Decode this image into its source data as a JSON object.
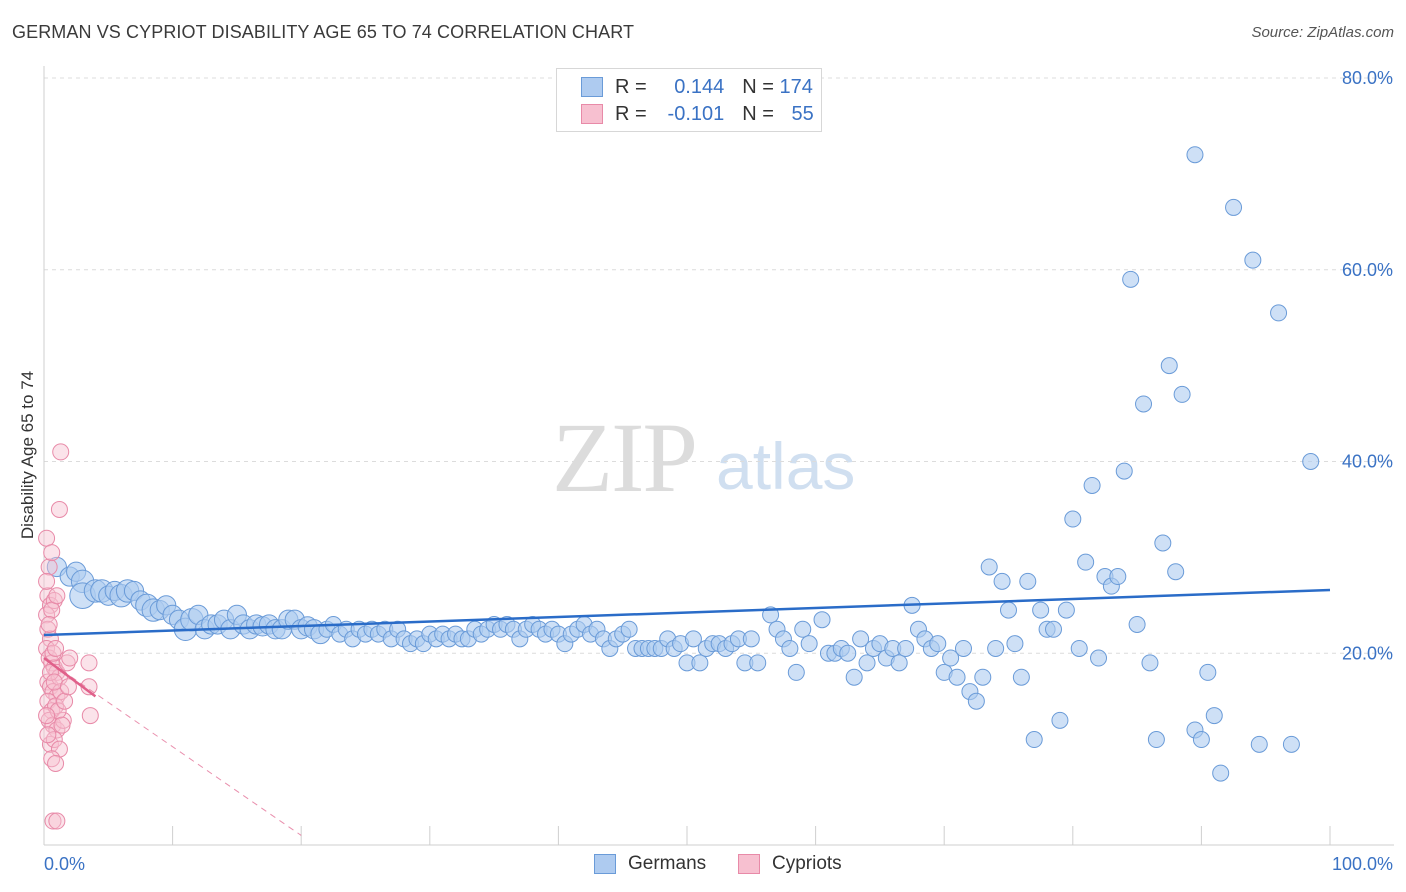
{
  "header": {
    "title": "GERMAN VS CYPRIOT DISABILITY AGE 65 TO 74 CORRELATION CHART",
    "source": "Source: ZipAtlas.com"
  },
  "legend": {
    "rows": [
      {
        "r_label": "R = ",
        "r_value": "0.144",
        "n_label": "N = ",
        "n_value": "174"
      },
      {
        "r_label": "R = ",
        "r_value": "-0.101",
        "n_label": "N = ",
        "n_value": "55"
      }
    ]
  },
  "bottom_legend": {
    "germans": "Germans",
    "cypriots": "Cypriots"
  },
  "watermark": {
    "zip": "ZIP",
    "atlas": "atlas"
  },
  "colors": {
    "germans_fill": "#aecbf0",
    "germans_stroke": "#6a9bd8",
    "germans_line": "#2a6cc8",
    "cypriots_fill": "#f7c0d0",
    "cypriots_stroke": "#e88aa8",
    "cypriots_line": "#e0608a",
    "axis_label": "#3a72c4"
  },
  "chart_data": {
    "type": "scatter",
    "title": "GERMAN VS CYPRIOT DISABILITY AGE 65 TO 74 CORRELATION CHART",
    "xlabel": "",
    "ylabel": "Disability Age 65 to 74",
    "xlim": [
      0,
      100
    ],
    "ylim": [
      0,
      80
    ],
    "x_tick_labels": [
      "0.0%",
      "100.0%"
    ],
    "y_ticks": [
      20,
      40,
      60,
      80
    ],
    "y_tick_labels": [
      "20.0%",
      "40.0%",
      "60.0%",
      "80.0%"
    ],
    "grid": "horizontal dashed",
    "legend_placement": "top-center",
    "series": [
      {
        "name": "Germans",
        "R": 0.144,
        "N": 174,
        "trend": {
          "x": [
            0,
            100
          ],
          "y": [
            21.9,
            26.6
          ]
        },
        "points": [
          [
            1,
            29,
            12
          ],
          [
            2,
            28,
            12
          ],
          [
            2.5,
            28.5,
            12
          ],
          [
            3,
            27.5,
            14
          ],
          [
            3,
            26,
            16
          ],
          [
            4,
            26.5,
            14
          ],
          [
            4.5,
            26.5,
            14
          ],
          [
            5,
            26,
            12
          ],
          [
            5.5,
            26.5,
            12
          ],
          [
            6,
            26,
            14
          ],
          [
            6.5,
            26.5,
            14
          ],
          [
            7,
            26.5,
            12
          ],
          [
            7.5,
            25.5,
            12
          ],
          [
            8,
            25,
            14
          ],
          [
            8.5,
            24.5,
            14
          ],
          [
            9,
            24.5,
            12
          ],
          [
            9.5,
            25,
            12
          ],
          [
            10,
            24,
            12
          ],
          [
            10.5,
            23.5,
            12
          ],
          [
            11,
            22.5,
            14
          ],
          [
            11.5,
            23.5,
            14
          ],
          [
            12,
            24,
            12
          ],
          [
            12.5,
            22.5,
            12
          ],
          [
            13,
            23,
            12
          ],
          [
            13.5,
            23,
            12
          ],
          [
            14,
            23.5,
            12
          ],
          [
            14.5,
            22.5,
            12
          ],
          [
            15,
            24,
            12
          ],
          [
            15.5,
            23,
            12
          ],
          [
            16,
            22.5,
            12
          ],
          [
            16.5,
            23,
            12
          ],
          [
            17,
            22.8,
            12
          ],
          [
            17.5,
            23,
            12
          ],
          [
            18,
            22.5,
            12
          ],
          [
            18.5,
            22.5,
            12
          ],
          [
            19,
            23.5,
            12
          ],
          [
            19.5,
            23.5,
            12
          ],
          [
            20,
            22.5,
            12
          ],
          [
            20.5,
            22.8,
            12
          ],
          [
            21,
            22.5,
            12
          ],
          [
            21.5,
            22,
            12
          ],
          [
            22,
            22.5,
            10
          ],
          [
            22.5,
            23,
            10
          ],
          [
            23,
            22,
            10
          ],
          [
            23.5,
            22.5,
            10
          ],
          [
            24,
            21.5,
            10
          ],
          [
            24.5,
            22.5,
            10
          ],
          [
            25,
            22,
            10
          ],
          [
            25.5,
            22.5,
            10
          ],
          [
            26,
            22,
            10
          ],
          [
            26.5,
            22.5,
            10
          ],
          [
            27,
            21.5,
            10
          ],
          [
            27.5,
            22.5,
            10
          ],
          [
            28,
            21.5,
            10
          ],
          [
            28.5,
            21,
            10
          ],
          [
            29,
            21.5,
            10
          ],
          [
            29.5,
            21,
            10
          ],
          [
            30,
            22,
            10
          ],
          [
            30.5,
            21.5,
            10
          ],
          [
            31,
            22,
            10
          ],
          [
            31.5,
            21.5,
            10
          ],
          [
            32,
            22,
            10
          ],
          [
            32.5,
            21.5,
            10
          ],
          [
            33,
            21.5,
            10
          ],
          [
            33.5,
            22.5,
            10
          ],
          [
            34,
            22,
            10
          ],
          [
            34.5,
            22.5,
            10
          ],
          [
            35,
            23,
            10
          ],
          [
            35.5,
            22.5,
            10
          ],
          [
            36,
            23,
            10
          ],
          [
            36.5,
            22.5,
            10
          ],
          [
            37,
            21.5,
            10
          ],
          [
            37.5,
            22.5,
            10
          ],
          [
            38,
            23,
            10
          ],
          [
            38.5,
            22.5,
            10
          ],
          [
            39,
            22,
            10
          ],
          [
            39.5,
            22.5,
            10
          ],
          [
            40,
            22,
            10
          ],
          [
            40.5,
            21,
            10
          ],
          [
            41,
            22,
            10
          ],
          [
            41.5,
            22.5,
            10
          ],
          [
            42,
            23,
            10
          ],
          [
            42.5,
            22,
            10
          ],
          [
            43,
            22.5,
            10
          ],
          [
            43.5,
            21.5,
            10
          ],
          [
            44,
            20.5,
            10
          ],
          [
            44.5,
            21.5,
            10
          ],
          [
            45,
            22,
            10
          ],
          [
            45.5,
            22.5,
            10
          ],
          [
            46,
            20.5,
            10
          ],
          [
            46.5,
            20.5,
            10
          ],
          [
            47,
            20.5,
            10
          ],
          [
            47.5,
            20.5,
            10
          ],
          [
            48,
            20.5,
            10
          ],
          [
            48.5,
            21.5,
            10
          ],
          [
            49,
            20.5,
            10
          ],
          [
            49.5,
            21,
            10
          ],
          [
            50,
            19,
            10
          ],
          [
            50.5,
            21.5,
            10
          ],
          [
            51,
            19,
            10
          ],
          [
            51.5,
            20.5,
            10
          ],
          [
            52,
            21,
            10
          ],
          [
            52.5,
            21,
            10
          ],
          [
            53,
            20.5,
            10
          ],
          [
            53.5,
            21,
            10
          ],
          [
            54,
            21.5,
            10
          ],
          [
            54.5,
            19,
            10
          ],
          [
            55,
            21.5,
            10
          ],
          [
            55.5,
            19,
            10
          ],
          [
            56.5,
            24,
            10
          ],
          [
            57,
            22.5,
            10
          ],
          [
            57.5,
            21.5,
            10
          ],
          [
            58,
            20.5,
            10
          ],
          [
            58.5,
            18,
            10
          ],
          [
            59,
            22.5,
            10
          ],
          [
            59.5,
            21,
            10
          ],
          [
            60.5,
            23.5,
            10
          ],
          [
            61,
            20,
            10
          ],
          [
            61.5,
            20,
            10
          ],
          [
            62,
            20.5,
            10
          ],
          [
            62.5,
            20,
            10
          ],
          [
            63,
            17.5,
            10
          ],
          [
            63.5,
            21.5,
            10
          ],
          [
            64,
            19,
            10
          ],
          [
            64.5,
            20.5,
            10
          ],
          [
            65,
            21,
            10
          ],
          [
            65.5,
            19.5,
            10
          ],
          [
            66,
            20.5,
            10
          ],
          [
            66.5,
            19,
            10
          ],
          [
            67,
            20.5,
            10
          ],
          [
            67.5,
            25,
            10
          ],
          [
            68,
            22.5,
            10
          ],
          [
            68.5,
            21.5,
            10
          ],
          [
            69,
            20.5,
            10
          ],
          [
            69.5,
            21,
            10
          ],
          [
            70,
            18,
            10
          ],
          [
            70.5,
            19.5,
            10
          ],
          [
            71,
            17.5,
            10
          ],
          [
            71.5,
            20.5,
            10
          ],
          [
            72,
            16,
            10
          ],
          [
            72.5,
            15,
            10
          ],
          [
            73,
            17.5,
            10
          ],
          [
            73.5,
            29,
            10
          ],
          [
            74,
            20.5,
            10
          ],
          [
            74.5,
            27.5,
            10
          ],
          [
            75,
            24.5,
            10
          ],
          [
            75.5,
            21,
            10
          ],
          [
            76,
            17.5,
            10
          ],
          [
            76.5,
            27.5,
            10
          ],
          [
            77,
            11,
            10
          ],
          [
            77.5,
            24.5,
            10
          ],
          [
            78,
            22.5,
            10
          ],
          [
            78.5,
            22.5,
            10
          ],
          [
            79,
            13,
            10
          ],
          [
            79.5,
            24.5,
            10
          ],
          [
            80,
            34,
            10
          ],
          [
            80.5,
            20.5,
            10
          ],
          [
            81,
            29.5,
            10
          ],
          [
            81.5,
            37.5,
            10
          ],
          [
            82,
            19.5,
            10
          ],
          [
            82.5,
            28,
            10
          ],
          [
            83,
            27,
            10
          ],
          [
            83.5,
            28,
            10
          ],
          [
            84,
            39,
            10
          ],
          [
            84.5,
            59,
            10
          ],
          [
            85,
            23,
            10
          ],
          [
            85.5,
            46,
            10
          ],
          [
            86,
            19,
            10
          ],
          [
            86.5,
            11,
            10
          ],
          [
            87,
            31.5,
            10
          ],
          [
            87.5,
            50,
            10
          ],
          [
            88,
            28.5,
            10
          ],
          [
            88.5,
            47,
            10
          ],
          [
            89.5,
            12,
            10
          ],
          [
            89.5,
            72,
            10
          ],
          [
            90,
            11,
            10
          ],
          [
            90.5,
            18,
            10
          ],
          [
            91,
            13.5,
            10
          ],
          [
            91.5,
            7.5,
            10
          ],
          [
            92.5,
            66.5,
            10
          ],
          [
            94,
            61,
            10
          ],
          [
            94.5,
            10.5,
            10
          ],
          [
            96,
            55.5,
            10
          ],
          [
            97,
            10.5,
            10
          ],
          [
            98.5,
            40,
            10
          ]
        ]
      },
      {
        "name": "Cypriots",
        "R": -0.101,
        "N": 55,
        "trend_solid": {
          "x": [
            0,
            4
          ],
          "y": [
            19.5,
            15.5
          ]
        },
        "trend_dashed": {
          "x": [
            0,
            20
          ],
          "y": [
            19.5,
            1
          ]
        },
        "points": [
          [
            0.2,
            32,
            10
          ],
          [
            0.4,
            29,
            10
          ],
          [
            0.6,
            30.5,
            10
          ],
          [
            0.3,
            26,
            10
          ],
          [
            0.5,
            25,
            10
          ],
          [
            0.8,
            25.5,
            10
          ],
          [
            0.2,
            24,
            10
          ],
          [
            0.6,
            24.5,
            10
          ],
          [
            1,
            26,
            10
          ],
          [
            0.3,
            22.5,
            10
          ],
          [
            0.5,
            21.5,
            10
          ],
          [
            0.2,
            20.5,
            10
          ],
          [
            0.4,
            19.5,
            10
          ],
          [
            0.6,
            19,
            10
          ],
          [
            0.8,
            18.5,
            10
          ],
          [
            1,
            18,
            10
          ],
          [
            0.3,
            17,
            10
          ],
          [
            0.5,
            16.5,
            10
          ],
          [
            0.7,
            16,
            10
          ],
          [
            1,
            15.5,
            10
          ],
          [
            1.2,
            17.5,
            10
          ],
          [
            0.3,
            15,
            10
          ],
          [
            0.6,
            14,
            10
          ],
          [
            0.9,
            14.5,
            10
          ],
          [
            1.3,
            16,
            10
          ],
          [
            0.4,
            13,
            10
          ],
          [
            0.7,
            12.5,
            10
          ],
          [
            1,
            12,
            10
          ],
          [
            1.5,
            13,
            10
          ],
          [
            0.5,
            10.5,
            10
          ],
          [
            0.8,
            11,
            10
          ],
          [
            1.2,
            10,
            10
          ],
          [
            0.6,
            9,
            10
          ],
          [
            0.9,
            8.5,
            10
          ],
          [
            0.7,
            2.5,
            10
          ],
          [
            1,
            2.5,
            10
          ],
          [
            1.8,
            19,
            10
          ],
          [
            2,
            19.5,
            10
          ],
          [
            3.5,
            19,
            10
          ],
          [
            3.5,
            16.5,
            10
          ],
          [
            3.6,
            13.5,
            10
          ],
          [
            1.3,
            41,
            10
          ],
          [
            1.2,
            35,
            10
          ],
          [
            0.4,
            23,
            10
          ],
          [
            0.2,
            27.5,
            10
          ],
          [
            0.7,
            20,
            10
          ],
          [
            0.9,
            20.5,
            10
          ],
          [
            1.1,
            14,
            10
          ],
          [
            0.3,
            11.5,
            10
          ],
          [
            1.4,
            12.5,
            10
          ],
          [
            0.5,
            18,
            10
          ],
          [
            0.8,
            17,
            10
          ],
          [
            1.6,
            15,
            10
          ],
          [
            0.2,
            13.5,
            10
          ],
          [
            1.9,
            16.5,
            10
          ]
        ]
      }
    ]
  }
}
